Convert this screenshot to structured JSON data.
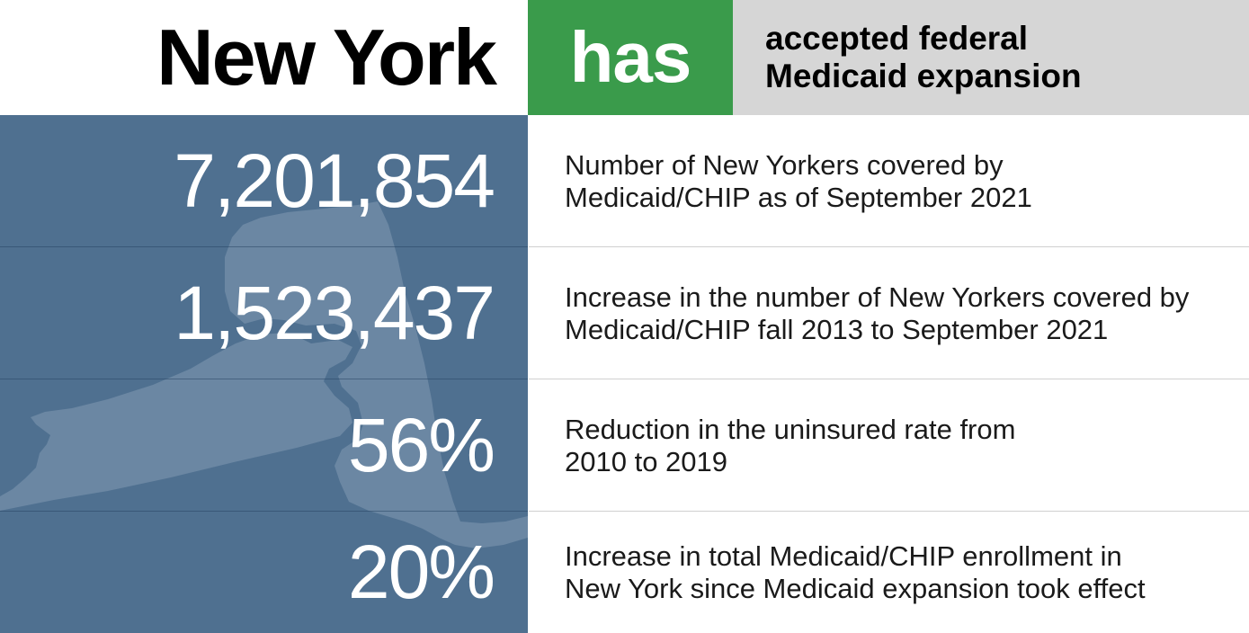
{
  "header": {
    "state": "New York",
    "status": "has",
    "status_desc_line1": "accepted federal",
    "status_desc_line2": "Medicaid expansion"
  },
  "colors": {
    "status_green": "#3a9b4b",
    "panel_blue": "#4f7090",
    "map_tint": "#6b87a3",
    "desc_gray": "#d6d6d6"
  },
  "map_icon": "new-york-state-silhouette",
  "stats": [
    {
      "value": "7,201,854",
      "label_line1": "Number of New Yorkers covered by",
      "label_line2": "Medicaid/CHIP as of September 2021"
    },
    {
      "value": "1,523,437",
      "label_line1": "Increase in the number of New Yorkers covered by",
      "label_line2": "Medicaid/CHIP fall 2013 to September 2021"
    },
    {
      "value": "56%",
      "label_line1": "Reduction in the uninsured rate from",
      "label_line2": "2010 to 2019"
    },
    {
      "value": "20%",
      "label_line1": "Increase in total Medicaid/CHIP enrollment in",
      "label_line2": "New York since Medicaid expansion took effect"
    }
  ]
}
